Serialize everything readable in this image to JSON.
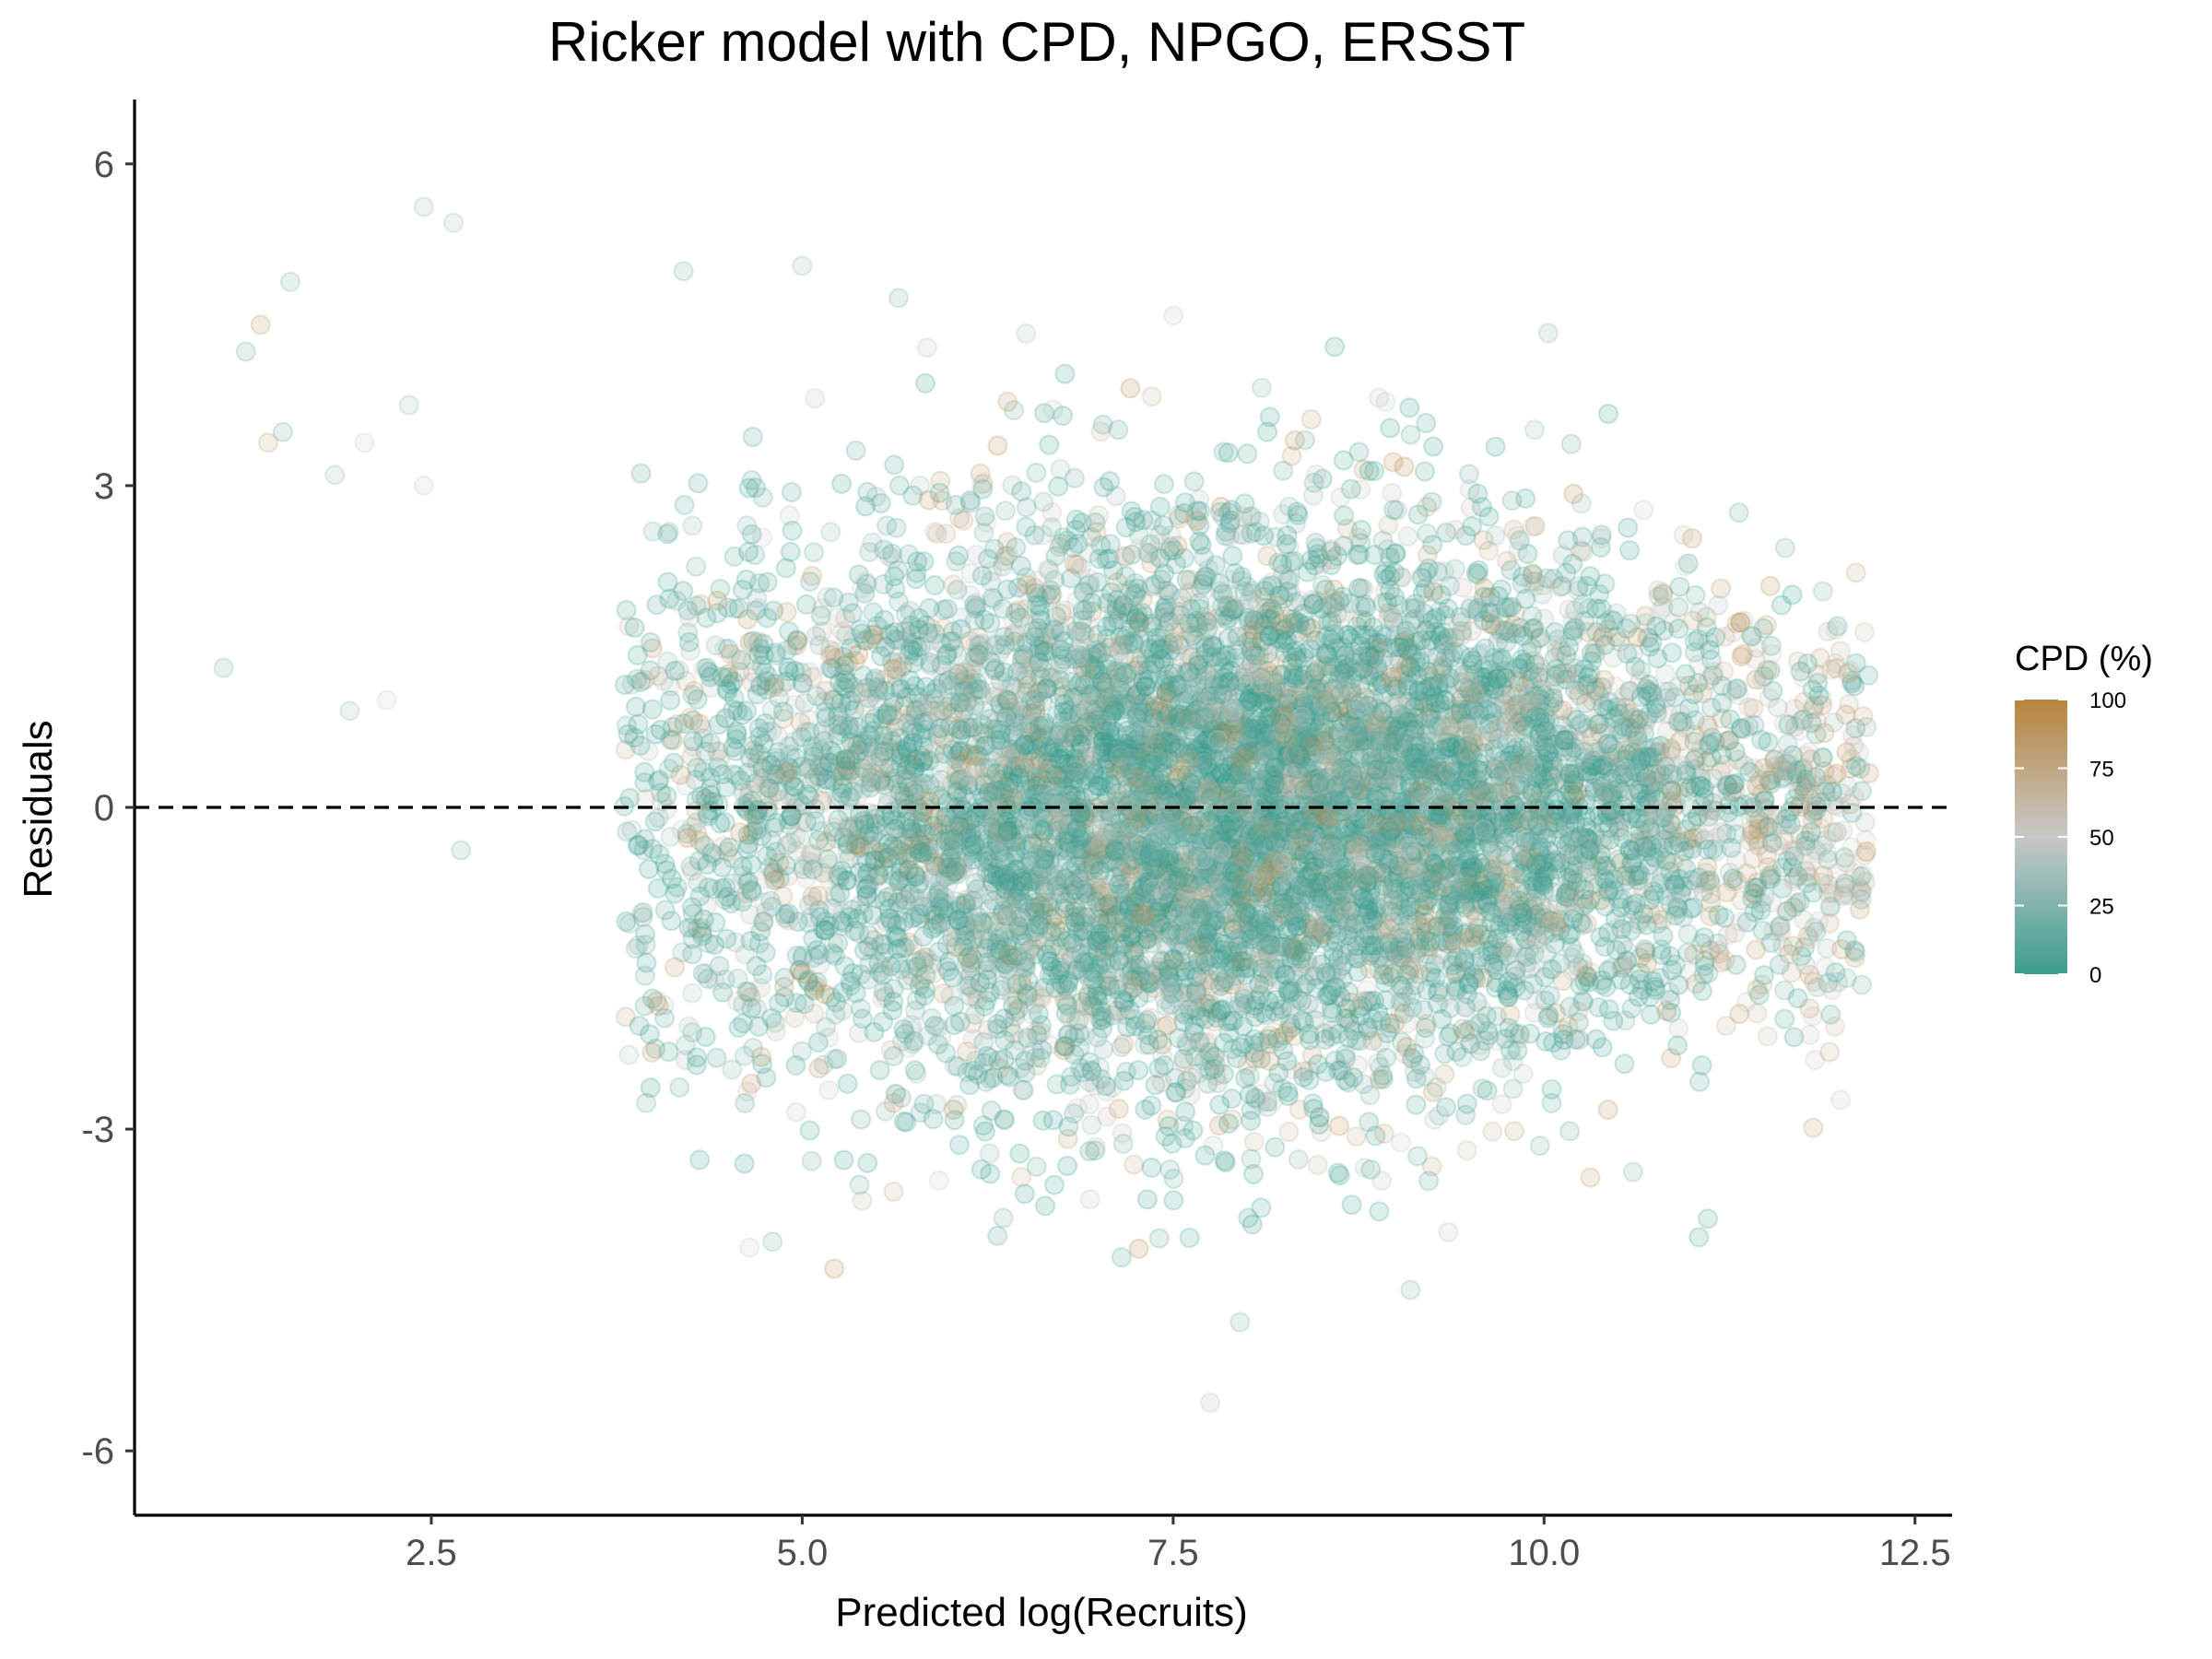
{
  "chart_data": {
    "type": "scatter",
    "title": "Ricker model with CPD, NPGO, ERSST",
    "xlabel": "Predicted log(Recruits)",
    "ylabel": "Residuals",
    "xlim": [
      0.5,
      12.75
    ],
    "ylim": [
      -6.6,
      6.6
    ],
    "x_ticks": [
      "2.5",
      "5.0",
      "7.5",
      "10.0",
      "12.5"
    ],
    "x_tick_values": [
      2.5,
      5.0,
      7.5,
      10.0,
      12.5
    ],
    "y_ticks": [
      "-6",
      "-3",
      "0",
      "3",
      "6"
    ],
    "y_tick_values": [
      -6,
      -3,
      0,
      3,
      6
    ],
    "reference_line": {
      "y": 0,
      "style": "dashed",
      "color": "#000000"
    },
    "grid": false,
    "point_alpha": 0.18,
    "legend": {
      "title": "CPD (%)",
      "placement": "right",
      "type": "colorbar",
      "range": [
        0,
        100
      ],
      "ticks": [
        "0",
        "25",
        "50",
        "75",
        "100"
      ],
      "tick_values": [
        0,
        25,
        50,
        75,
        100
      ],
      "colors": {
        "low": "#3a9d8f",
        "mid": "#c8c8c8",
        "high": "#b8843d"
      }
    },
    "notable_points": [
      {
        "x": 2.45,
        "y": 5.6,
        "cpd": 30
      },
      {
        "x": 2.65,
        "y": 5.45,
        "cpd": 35
      },
      {
        "x": 1.55,
        "y": 4.9,
        "cpd": 20
      },
      {
        "x": 1.35,
        "y": 4.5,
        "cpd": 90
      },
      {
        "x": 1.25,
        "y": 4.25,
        "cpd": 15
      },
      {
        "x": 1.5,
        "y": 3.5,
        "cpd": 15
      },
      {
        "x": 1.4,
        "y": 3.4,
        "cpd": 80
      },
      {
        "x": 1.1,
        "y": 1.3,
        "cpd": 20
      },
      {
        "x": 1.85,
        "y": 3.1,
        "cpd": 30
      },
      {
        "x": 1.95,
        "y": 0.9,
        "cpd": 30
      },
      {
        "x": 2.05,
        "y": 3.4,
        "cpd": 50
      },
      {
        "x": 2.2,
        "y": 1.0,
        "cpd": 50
      },
      {
        "x": 2.35,
        "y": 3.75,
        "cpd": 30
      },
      {
        "x": 2.45,
        "y": 3.0,
        "cpd": 50
      },
      {
        "x": 2.7,
        "y": -0.4,
        "cpd": 20
      },
      {
        "x": 4.2,
        "y": 5.0,
        "cpd": 20
      },
      {
        "x": 5.0,
        "y": 5.05,
        "cpd": 30
      },
      {
        "x": 5.65,
        "y": 4.75,
        "cpd": 20
      },
      {
        "x": 4.8,
        "y": -4.05,
        "cpd": 20
      },
      {
        "x": 7.95,
        "y": -4.8,
        "cpd": 20
      },
      {
        "x": 7.75,
        "y": -5.55,
        "cpd": 40
      },
      {
        "x": 9.1,
        "y": -4.5,
        "cpd": 20
      },
      {
        "x": 10.6,
        "y": -3.4,
        "cpd": 20
      },
      {
        "x": 10.95,
        "y": 2.25,
        "cpd": 50
      },
      {
        "x": 12.15,
        "y": 0.85,
        "cpd": 80
      },
      {
        "x": 12.1,
        "y": -1.35,
        "cpd": 20
      },
      {
        "x": 11.5,
        "y": 1.7,
        "cpd": 80
      },
      {
        "x": 12.05,
        "y": 1.25,
        "cpd": 80
      }
    ],
    "point_cloud": {
      "n_points": 9000,
      "x_range": [
        1.1,
        12.2
      ],
      "y_range": [
        -5.55,
        5.6
      ],
      "x_center": 8.0,
      "x_sd": 1.9,
      "y_center": 0.0,
      "y_sd": 1.25,
      "cpd_mostly_low": true
    }
  }
}
